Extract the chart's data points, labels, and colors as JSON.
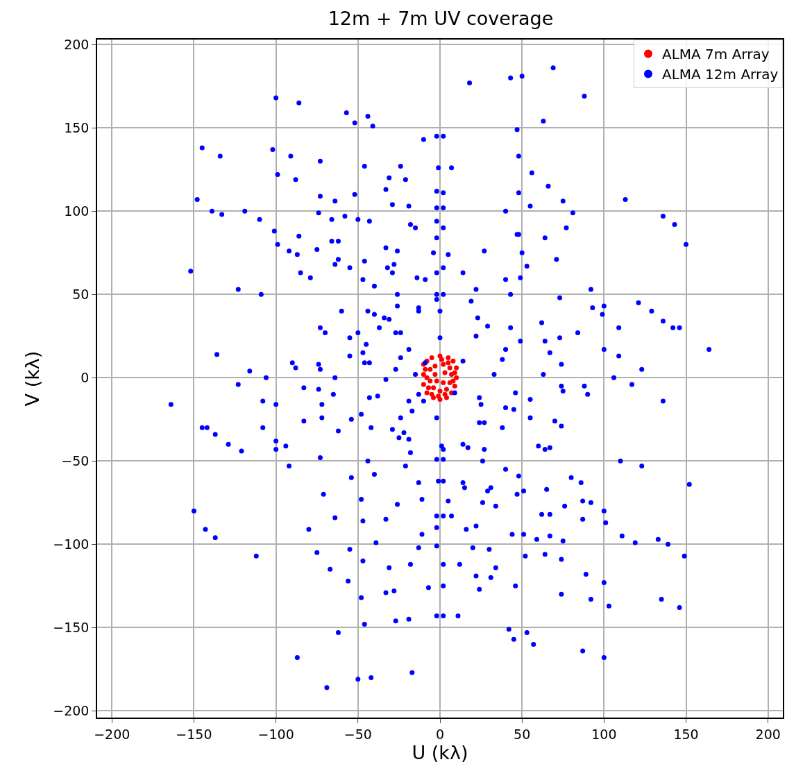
{
  "chart_data": {
    "type": "scatter",
    "title": "12m + 7m UV coverage",
    "xlabel": "U (kλ)",
    "ylabel": "V (kλ)",
    "xlim": [
      -209,
      209
    ],
    "ylim": [
      -204,
      203
    ],
    "xticks": [
      -200,
      -150,
      -100,
      -50,
      0,
      50,
      100,
      150,
      200
    ],
    "yticks": [
      -200,
      -150,
      -100,
      -50,
      0,
      50,
      100,
      150,
      200
    ],
    "grid": true,
    "legend": "top right",
    "marker": "circle",
    "series": [
      {
        "name": "ALMA 7m Array",
        "color": "#ff0000",
        "x": [
          -10,
          -8,
          -5,
          0,
          5,
          8,
          10,
          10,
          9,
          7,
          4,
          0,
          -4,
          -8,
          -10,
          -10,
          -6,
          -3,
          2,
          6,
          7,
          6,
          4,
          0,
          -4,
          -6,
          -3,
          3,
          2,
          -2,
          -8,
          8,
          -7,
          5,
          -5,
          1,
          -1,
          9,
          -9,
          3
        ],
        "values": [
          8,
          10,
          12,
          13,
          12,
          10,
          6,
          0,
          -5,
          -9,
          -12,
          -13,
          -12,
          -9,
          -4,
          2,
          5,
          7,
          8,
          6,
          2,
          -3,
          -7,
          -8,
          -6,
          -2,
          2,
          3,
          -3,
          -2,
          0,
          -2,
          -6,
          9,
          -10,
          11,
          -11,
          3,
          5,
          -10
        ]
      },
      {
        "name": "ALMA 12m Array",
        "color": "#0000ff",
        "x": [
          18,
          43,
          50,
          69,
          63,
          88,
          -2,
          47,
          7,
          48,
          -2,
          56,
          55,
          66,
          75,
          81,
          77,
          113,
          136,
          143,
          150,
          -2,
          48,
          -2,
          40,
          -2,
          48,
          27,
          47,
          64,
          71,
          50,
          53,
          49,
          40,
          43,
          92,
          121,
          73,
          93,
          100,
          136,
          146,
          164,
          129,
          142,
          99,
          109,
          62,
          84,
          73,
          100,
          109,
          123,
          43,
          64,
          49,
          67,
          38,
          63,
          74,
          106,
          22,
          40,
          23,
          29,
          14,
          33,
          -2,
          19,
          -2,
          22,
          5,
          -2,
          14,
          -100,
          -86,
          -57,
          -44,
          -52,
          -41,
          -10,
          2,
          -145,
          -134,
          -102,
          -91,
          -73,
          -46,
          -24,
          -1,
          -99,
          -88,
          -31,
          -21,
          -33,
          2,
          -73,
          -64,
          -52,
          -29,
          -19,
          2,
          -148,
          -139,
          -133,
          -101,
          -119,
          -110,
          -74,
          -66,
          -58,
          -50,
          -43,
          -18,
          -15,
          2,
          -86,
          -66,
          -62,
          -33,
          -99,
          -92,
          -87,
          -64,
          -75,
          -62,
          -26,
          -4,
          -55,
          -29,
          -46,
          -32,
          -28,
          2,
          -85,
          -79,
          -152,
          -123,
          -47,
          -40,
          -14,
          -9,
          -109,
          -60,
          -26,
          2,
          -26,
          -13,
          -13,
          0,
          -44,
          -40,
          -34,
          -31,
          -73,
          -70,
          -37,
          -27,
          -24,
          0,
          -55,
          -45,
          -50,
          -19,
          -55,
          -46,
          -43,
          -27,
          -24,
          -9,
          -136,
          -116,
          -90,
          -88,
          -74,
          -73,
          -47,
          -15,
          -164,
          -145,
          -142,
          -129,
          -137,
          -100,
          -121,
          -92,
          -123,
          -108,
          -106,
          -74,
          -100,
          -72,
          -83,
          -72,
          -83,
          -62,
          -108,
          -100,
          -94,
          -73,
          -64,
          -38,
          -65,
          -48,
          -54,
          -42,
          -43,
          -24,
          -33,
          -13,
          -29,
          -25,
          -22,
          -19,
          -19,
          -17,
          -10,
          -18,
          2,
          -21,
          2,
          -44,
          -40,
          -54,
          -48,
          -71,
          -64,
          -150,
          -143,
          -137,
          -112,
          -80,
          -75,
          -67,
          -55,
          -56,
          -31,
          -47,
          -13,
          -47,
          -26,
          -33,
          2,
          -39,
          -11,
          -48,
          -33,
          -28,
          -7,
          -46,
          -27,
          -19,
          2,
          -87,
          -62,
          -69,
          -50,
          -42,
          -17,
          -18,
          2,
          -13,
          -1,
          -11,
          117,
          136,
          46,
          55,
          74,
          75,
          88,
          90,
          45,
          55,
          70,
          74,
          25,
          40,
          9,
          24,
          27,
          38,
          -2,
          24,
          60,
          64,
          67,
          110,
          123,
          152,
          80,
          86,
          40,
          48,
          65,
          87,
          92,
          100,
          51,
          76,
          34,
          62,
          67,
          87,
          101,
          133,
          111,
          119,
          139,
          149,
          51,
          59,
          67,
          75,
          64,
          74,
          30,
          52,
          89,
          100,
          46,
          74,
          92,
          103,
          135,
          146,
          42,
          53,
          45,
          57,
          87,
          100,
          2,
          24,
          -2,
          11,
          12,
          34,
          22,
          31,
          -2,
          20,
          -2,
          16,
          22,
          44,
          -2,
          7,
          -2,
          26,
          1,
          14,
          17,
          27,
          2,
          14,
          31,
          47,
          5,
          26,
          15,
          29
        ],
        "values": [
          177,
          180,
          181,
          186,
          154,
          169,
          145,
          149,
          126,
          133,
          112,
          123,
          103,
          115,
          106,
          99,
          90,
          107,
          97,
          92,
          80,
          102,
          111,
          94,
          100,
          84,
          86,
          76,
          86,
          84,
          71,
          75,
          67,
          60,
          59,
          50,
          53,
          45,
          48,
          42,
          43,
          34,
          30,
          17,
          40,
          30,
          38,
          30,
          33,
          27,
          24,
          17,
          13,
          5,
          30,
          22,
          22,
          15,
          11,
          2,
          8,
          0,
          25,
          17,
          36,
          31,
          10,
          2,
          47,
          46,
          50,
          53,
          74,
          63,
          63,
          168,
          165,
          159,
          157,
          153,
          151,
          143,
          145,
          138,
          133,
          137,
          133,
          130,
          127,
          127,
          126,
          122,
          119,
          120,
          119,
          113,
          111,
          109,
          106,
          110,
          104,
          103,
          102,
          107,
          100,
          98,
          88,
          100,
          95,
          99,
          95,
          97,
          95,
          94,
          92,
          90,
          90,
          85,
          82,
          82,
          78,
          80,
          76,
          74,
          68,
          77,
          71,
          76,
          75,
          66,
          63,
          70,
          66,
          68,
          66,
          63,
          60,
          64,
          53,
          59,
          55,
          60,
          59,
          50,
          40,
          50,
          50,
          43,
          42,
          40,
          40,
          40,
          38,
          36,
          35,
          30,
          27,
          30,
          27,
          27,
          24,
          24,
          20,
          27,
          17,
          13,
          9,
          9,
          5,
          12,
          9,
          14,
          4,
          9,
          6,
          8,
          5,
          15,
          2,
          -16,
          -30,
          -30,
          -40,
          -34,
          -43,
          -44,
          -53,
          -4,
          -14,
          0,
          -7,
          -16,
          -24,
          -6,
          -16,
          -26,
          -32,
          -30,
          -38,
          -41,
          -48,
          0,
          -11,
          -10,
          -22,
          -25,
          -30,
          -12,
          -24,
          -1,
          -10,
          -31,
          -36,
          -33,
          -37,
          -14,
          -20,
          -14,
          -45,
          -43,
          -53,
          -49,
          -50,
          -58,
          -60,
          -73,
          -70,
          -84,
          -80,
          -91,
          -96,
          -107,
          -91,
          -105,
          -115,
          -103,
          -122,
          -114,
          -110,
          -102,
          -86,
          -76,
          -85,
          -83,
          -99,
          -94,
          -132,
          -129,
          -128,
          -126,
          -148,
          -146,
          -145,
          -143,
          -168,
          -153,
          -186,
          -181,
          -180,
          -177,
          -112,
          -112,
          -63,
          -62,
          -73,
          -4,
          -14,
          -9,
          -13,
          -5,
          -8,
          -5,
          -10,
          -19,
          -24,
          -26,
          -29,
          -16,
          -18,
          -9,
          -12,
          -27,
          -30,
          -24,
          -27,
          -41,
          -43,
          -42,
          -50,
          -53,
          -64,
          -60,
          -63,
          -55,
          -59,
          -67,
          -74,
          -75,
          -80,
          -68,
          -77,
          -77,
          -82,
          -82,
          -85,
          -87,
          -97,
          -95,
          -99,
          -100,
          -107,
          -94,
          -97,
          -95,
          -98,
          -106,
          -109,
          -103,
          -107,
          -118,
          -123,
          -125,
          -130,
          -133,
          -137,
          -133,
          -138,
          -151,
          -153,
          -157,
          -160,
          -164,
          -168,
          -125,
          -127,
          -143,
          -143,
          -112,
          -114,
          -119,
          -120,
          -101,
          -102,
          -90,
          -91,
          -89,
          -94,
          -83,
          -83,
          -49,
          -50,
          -41,
          -40,
          -42,
          -43,
          -62,
          -63,
          -66,
          -70,
          -74,
          -75,
          -66,
          -68
        ]
      }
    ]
  }
}
